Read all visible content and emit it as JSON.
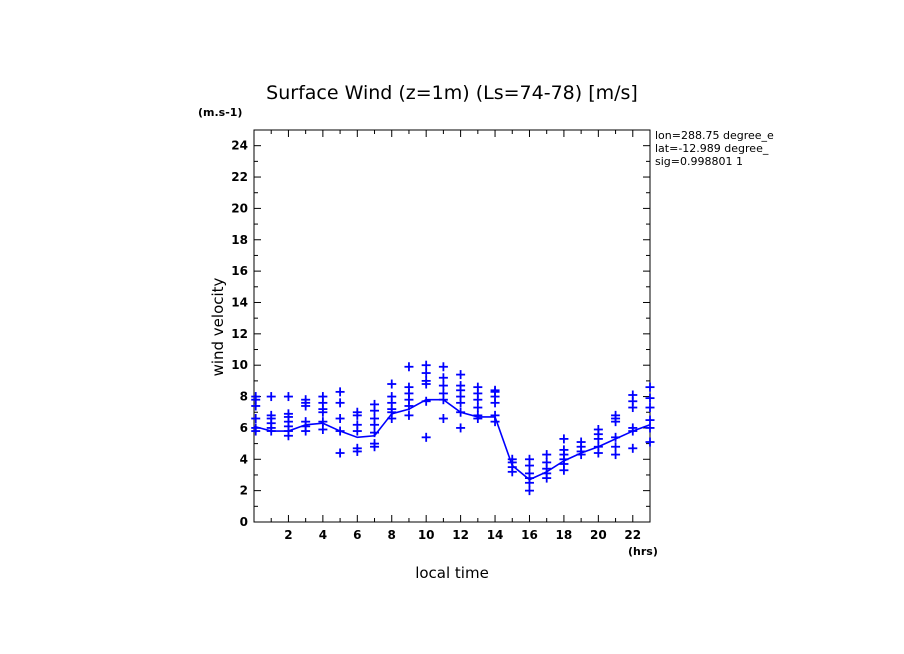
{
  "chart_data": {
    "type": "scatter",
    "title": "Surface Wind (z=1m) (Ls=74-78) [m/s]",
    "ylabel": "wind velocity",
    "yunit": "(m.s-1)",
    "xlabel": "local time",
    "xunit": "(hrs)",
    "xlim": [
      0,
      23
    ],
    "ylim": [
      0,
      25
    ],
    "xticks": [
      2,
      4,
      6,
      8,
      10,
      12,
      14,
      16,
      18,
      20,
      22
    ],
    "yticks": [
      0,
      2,
      4,
      6,
      8,
      10,
      12,
      14,
      16,
      18,
      20,
      22,
      24
    ],
    "info": [
      "lon=288.75 degree_e",
      "lat=-12.989 degree_",
      "sig=0.998801 1"
    ],
    "color": "#0000ff",
    "mean_line": {
      "x": [
        0,
        1,
        2,
        3,
        4,
        5,
        6,
        7,
        8,
        9,
        10,
        11,
        12,
        13,
        14,
        15,
        16,
        17,
        18,
        19,
        20,
        21,
        22,
        23
      ],
      "y": [
        6.1,
        5.8,
        5.8,
        6.2,
        6.3,
        5.8,
        5.4,
        5.5,
        6.9,
        7.2,
        7.8,
        7.8,
        7.0,
        6.7,
        6.7,
        3.6,
        2.7,
        3.2,
        3.9,
        4.4,
        4.8,
        5.3,
        5.8,
        6.2
      ]
    },
    "points": [
      {
        "x": 0.1,
        "y": [
          6.0,
          6.6,
          7.4,
          7.8,
          8.0,
          5.8
        ]
      },
      {
        "x": 1.0,
        "y": [
          5.8,
          6.0,
          6.3,
          6.6,
          6.8,
          8.0
        ]
      },
      {
        "x": 2.0,
        "y": [
          5.5,
          5.8,
          6.1,
          6.4,
          6.7,
          6.9,
          8.0
        ]
      },
      {
        "x": 3.0,
        "y": [
          5.8,
          6.1,
          6.4,
          7.4,
          7.6,
          7.8
        ]
      },
      {
        "x": 4.0,
        "y": [
          5.9,
          6.4,
          7.0,
          7.2,
          7.6,
          8.0
        ]
      },
      {
        "x": 5.0,
        "y": [
          4.4,
          5.8,
          6.6,
          7.6,
          8.3
        ]
      },
      {
        "x": 6.0,
        "y": [
          4.5,
          4.7,
          5.8,
          6.2,
          6.8,
          7.0
        ]
      },
      {
        "x": 7.0,
        "y": [
          4.8,
          5.0,
          5.7,
          6.2,
          6.6,
          7.1,
          7.5
        ]
      },
      {
        "x": 8.0,
        "y": [
          6.6,
          7.0,
          7.2,
          7.6,
          8.0,
          8.8
        ]
      },
      {
        "x": 9.0,
        "y": [
          6.8,
          7.4,
          7.8,
          8.2,
          8.6,
          9.9
        ]
      },
      {
        "x": 10.0,
        "y": [
          5.4,
          7.7,
          8.8,
          9.0,
          9.5,
          10.0
        ]
      },
      {
        "x": 11.0,
        "y": [
          6.6,
          7.8,
          8.2,
          8.7,
          9.2,
          9.9
        ]
      },
      {
        "x": 12.0,
        "y": [
          6.0,
          7.0,
          7.6,
          8.0,
          8.4,
          8.7,
          9.4
        ]
      },
      {
        "x": 13.0,
        "y": [
          6.6,
          6.8,
          7.3,
          7.8,
          8.2,
          8.6
        ]
      },
      {
        "x": 14.0,
        "y": [
          6.4,
          6.8,
          7.6,
          8.0,
          8.3,
          8.4
        ]
      },
      {
        "x": 15.0,
        "y": [
          3.2,
          3.5,
          3.8,
          4.0
        ]
      },
      {
        "x": 16.0,
        "y": [
          2.0,
          2.5,
          2.8,
          3.1,
          3.6,
          4.0
        ]
      },
      {
        "x": 17.0,
        "y": [
          2.8,
          3.1,
          3.4,
          3.8,
          4.3
        ]
      },
      {
        "x": 18.0,
        "y": [
          3.3,
          3.7,
          4.0,
          4.3,
          4.6,
          5.3
        ]
      },
      {
        "x": 19.0,
        "y": [
          4.3,
          4.5,
          4.8,
          5.1
        ]
      },
      {
        "x": 20.0,
        "y": [
          4.4,
          4.8,
          5.3,
          5.6,
          5.9
        ]
      },
      {
        "x": 21.0,
        "y": [
          4.3,
          4.8,
          5.4,
          6.4,
          6.6,
          6.8
        ]
      },
      {
        "x": 22.0,
        "y": [
          4.7,
          5.8,
          6.0,
          7.3,
          7.7,
          8.1
        ]
      },
      {
        "x": 23.0,
        "y": [
          5.1,
          6.0,
          6.5,
          7.3,
          7.9,
          8.6
        ]
      }
    ]
  }
}
